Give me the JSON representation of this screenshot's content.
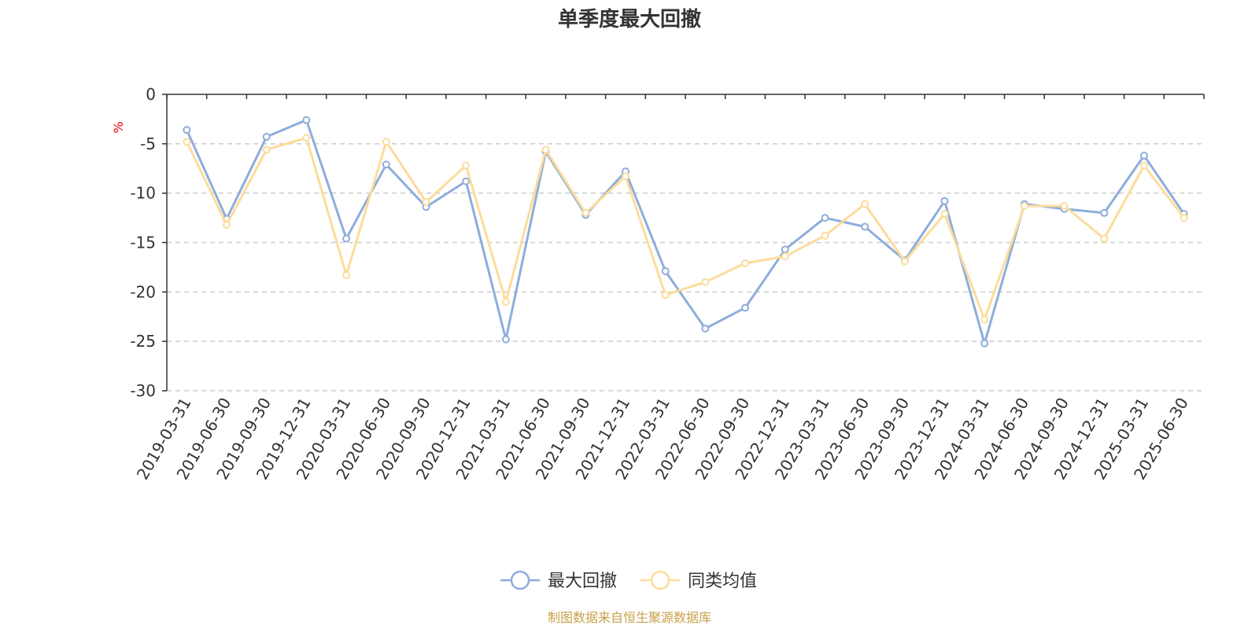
{
  "chart_data": {
    "type": "line",
    "title": "单季度最大回撤",
    "ylabel": "%",
    "ylim": [
      -30,
      0
    ],
    "yticks": [
      0,
      -5,
      -10,
      -15,
      -20,
      -25,
      -30
    ],
    "grid": true,
    "legend_position": "bottom",
    "categories": [
      "2019-03-31",
      "2019-06-30",
      "2019-09-30",
      "2019-12-31",
      "2020-03-31",
      "2020-06-30",
      "2020-09-30",
      "2020-12-31",
      "2021-03-31",
      "2021-06-30",
      "2021-09-30",
      "2021-12-31",
      "2022-03-31",
      "2022-06-30",
      "2022-09-30",
      "2022-12-31",
      "2023-03-31",
      "2023-06-30",
      "2023-09-30",
      "2023-12-31",
      "2024-03-31",
      "2024-06-30",
      "2024-09-30",
      "2024-12-31",
      "2025-03-31",
      "2025-06-30"
    ],
    "series": [
      {
        "name": "最大回撤",
        "color": "#8eaddc",
        "values": [
          -3.6,
          -12.6,
          -4.3,
          -2.6,
          -14.6,
          -7.1,
          -11.4,
          -8.8,
          -24.8,
          -5.8,
          -12.2,
          -7.8,
          -17.9,
          -23.7,
          -21.6,
          -15.7,
          -12.5,
          -13.4,
          -16.8,
          -10.8,
          -25.2,
          -11.1,
          -11.6,
          -12.0,
          -6.2,
          -12.1
        ]
      },
      {
        "name": "同类均值",
        "color": "#fcdc9c",
        "values": [
          -4.8,
          -13.2,
          -5.6,
          -4.4,
          -18.3,
          -4.8,
          -10.9,
          -7.2,
          -21.0,
          -5.6,
          -12.0,
          -8.3,
          -20.3,
          -19.0,
          -17.1,
          -16.4,
          -14.3,
          -11.1,
          -16.9,
          -12.1,
          -22.8,
          -11.3,
          -11.3,
          -14.6,
          -7.2,
          -12.5
        ]
      }
    ]
  },
  "source_text": "制图数据来自恒生聚源数据库"
}
